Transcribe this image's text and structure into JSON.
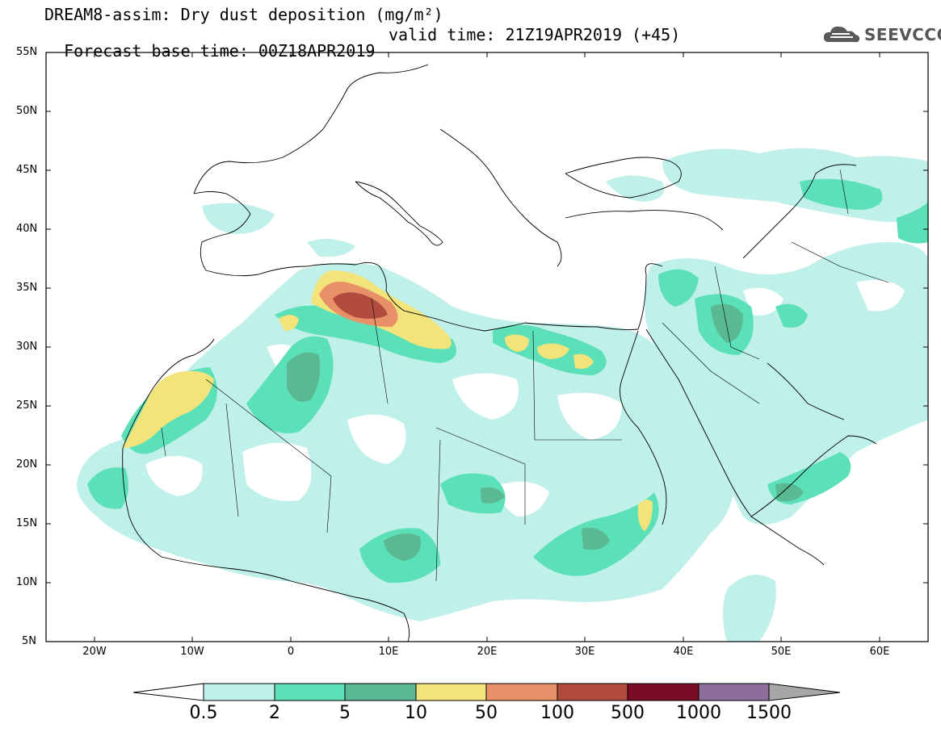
{
  "header": {
    "model_title": "DREAM8-assim: Dry dust deposition (mg/m²)",
    "base_time": "Forecast base time: 00Z18APR2019",
    "valid_time": "valid time: 21Z19APR2019 (+45)"
  },
  "logo": {
    "text": "SEEVCCC",
    "icon": "cloud-icon"
  },
  "map": {
    "region": "North Africa, Mediterranean, Middle East",
    "lon_range": [
      -25,
      65
    ],
    "lat_range": [
      5,
      55
    ],
    "y_ticks": [
      "55N",
      "50N",
      "45N",
      "40N",
      "35N",
      "30N",
      "25N",
      "20N",
      "15N",
      "10N",
      "5N"
    ],
    "x_ticks": [
      "20W",
      "10W",
      "0",
      "10E",
      "20E",
      "30E",
      "40E",
      "50E",
      "60E"
    ]
  },
  "colorbar": {
    "labels": [
      "0.5",
      "2",
      "5",
      "10",
      "50",
      "100",
      "500",
      "1000",
      "1500"
    ],
    "colors": [
      "#ffffff",
      "#bff0e9",
      "#5ce0b8",
      "#5ab893",
      "#f2e47a",
      "#e89068",
      "#b04b3e",
      "#7a0c2a",
      "#8e6d9c",
      "#a7a7a7"
    ]
  }
}
